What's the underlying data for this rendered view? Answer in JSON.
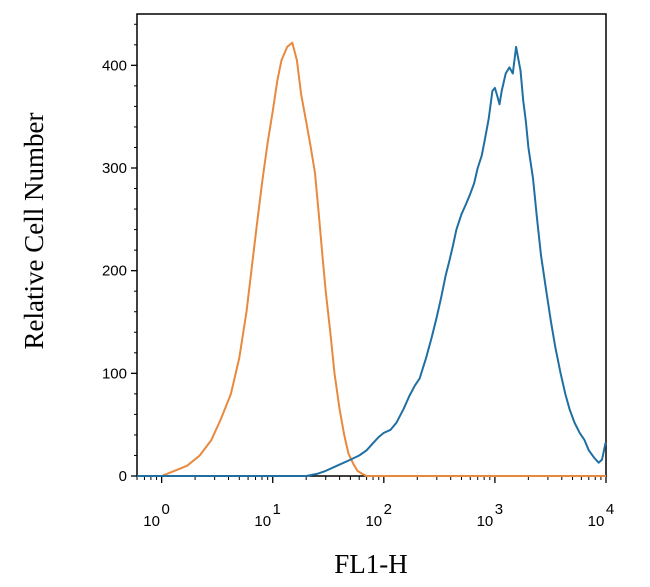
{
  "chart_data": {
    "type": "line",
    "title": "",
    "xlabel": "FL1-H",
    "ylabel": "Relative Cell Number",
    "x_scale": "log",
    "xlim": [
      0.6,
      10000
    ],
    "ylim": [
      0,
      450
    ],
    "grid": false,
    "legend": "none",
    "x_ticks": [
      {
        "value": 1,
        "base": "10",
        "exp": "0"
      },
      {
        "value": 10,
        "base": "10",
        "exp": "1"
      },
      {
        "value": 100,
        "base": "10",
        "exp": "2"
      },
      {
        "value": 1000,
        "base": "10",
        "exp": "3"
      },
      {
        "value": 10000,
        "base": "10",
        "exp": "4"
      }
    ],
    "y_ticks": [
      {
        "value": 0,
        "label": "0"
      },
      {
        "value": 100,
        "label": "100"
      },
      {
        "value": 200,
        "label": "200"
      },
      {
        "value": 300,
        "label": "300"
      },
      {
        "value": 400,
        "label": "400"
      }
    ],
    "series": [
      {
        "color": "#e8893e",
        "points": [
          [
            0.6,
            0
          ],
          [
            1.0,
            0
          ],
          [
            1.3,
            5
          ],
          [
            1.7,
            10
          ],
          [
            2.2,
            20
          ],
          [
            2.8,
            35
          ],
          [
            3.4,
            55
          ],
          [
            4.2,
            80
          ],
          [
            5.0,
            115
          ],
          [
            5.8,
            160
          ],
          [
            6.5,
            205
          ],
          [
            7.2,
            245
          ],
          [
            8.0,
            285
          ],
          [
            9.0,
            325
          ],
          [
            10.0,
            355
          ],
          [
            11.0,
            385
          ],
          [
            12.0,
            405
          ],
          [
            13.5,
            418
          ],
          [
            15.0,
            422
          ],
          [
            16.5,
            405
          ],
          [
            18.0,
            372
          ],
          [
            20.0,
            345
          ],
          [
            22.0,
            320
          ],
          [
            24.0,
            295
          ],
          [
            26.0,
            255
          ],
          [
            28.0,
            215
          ],
          [
            30.0,
            180
          ],
          [
            33.0,
            140
          ],
          [
            36.0,
            100
          ],
          [
            40.0,
            65
          ],
          [
            44.0,
            40
          ],
          [
            48.0,
            22
          ],
          [
            53.0,
            12
          ],
          [
            58.0,
            5
          ],
          [
            64.0,
            2
          ],
          [
            70.0,
            0
          ],
          [
            10000,
            0
          ]
        ]
      },
      {
        "color": "#1f6fa3",
        "points": [
          [
            0.6,
            0
          ],
          [
            20,
            0
          ],
          [
            25,
            2
          ],
          [
            30,
            5
          ],
          [
            38,
            10
          ],
          [
            48,
            15
          ],
          [
            60,
            20
          ],
          [
            70,
            25
          ],
          [
            80,
            32
          ],
          [
            90,
            38
          ],
          [
            100,
            42
          ],
          [
            115,
            45
          ],
          [
            130,
            52
          ],
          [
            150,
            65
          ],
          [
            170,
            78
          ],
          [
            190,
            88
          ],
          [
            210,
            95
          ],
          [
            240,
            115
          ],
          [
            270,
            135
          ],
          [
            300,
            155
          ],
          [
            330,
            175
          ],
          [
            360,
            195
          ],
          [
            390,
            210
          ],
          [
            420,
            225
          ],
          [
            450,
            240
          ],
          [
            500,
            255
          ],
          [
            550,
            265
          ],
          [
            600,
            275
          ],
          [
            650,
            285
          ],
          [
            700,
            300
          ],
          [
            760,
            312
          ],
          [
            820,
            330
          ],
          [
            880,
            348
          ],
          [
            950,
            375
          ],
          [
            1000,
            378
          ],
          [
            1050,
            370
          ],
          [
            1100,
            362
          ],
          [
            1150,
            375
          ],
          [
            1250,
            392
          ],
          [
            1350,
            398
          ],
          [
            1450,
            392
          ],
          [
            1550,
            418
          ],
          [
            1600,
            410
          ],
          [
            1700,
            395
          ],
          [
            1800,
            365
          ],
          [
            1900,
            345
          ],
          [
            2000,
            320
          ],
          [
            2200,
            290
          ],
          [
            2400,
            250
          ],
          [
            2600,
            215
          ],
          [
            2900,
            180
          ],
          [
            3200,
            150
          ],
          [
            3500,
            125
          ],
          [
            3900,
            100
          ],
          [
            4300,
            80
          ],
          [
            4700,
            65
          ],
          [
            5200,
            52
          ],
          [
            5800,
            42
          ],
          [
            6400,
            35
          ],
          [
            7000,
            25
          ],
          [
            7800,
            18
          ],
          [
            8600,
            13
          ],
          [
            9200,
            16
          ],
          [
            9600,
            25
          ],
          [
            9900,
            32
          ],
          [
            10000,
            32
          ]
        ]
      }
    ]
  }
}
